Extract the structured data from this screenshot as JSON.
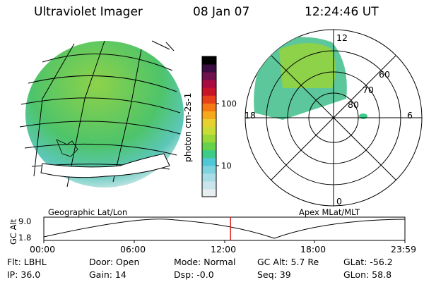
{
  "header": {
    "instrument": "Ultraviolet Imager",
    "date": "08 Jan 07",
    "time": "12:24:46 UT"
  },
  "colorbar": {
    "label": "photon cm-2s-1",
    "ticks": [
      "100",
      "10"
    ],
    "colors": [
      "#e8eef0",
      "#c9e4ea",
      "#a8dde6",
      "#7fd3df",
      "#4fc7d4",
      "#3ccc88",
      "#66d24a",
      "#9ad83a",
      "#c8dc36",
      "#e8d02e",
      "#f4a81c",
      "#f47814",
      "#e8401a",
      "#c81428",
      "#a80c40",
      "#70104c",
      "#3a0c40",
      "#000000"
    ]
  },
  "left_map": {
    "title": "Geographic Lat/Lon",
    "image_colors": {
      "top": "#8ed24a",
      "mid": "#4ec46a",
      "low": "#5cc7b8",
      "edge": "#dfeef2"
    }
  },
  "polar_map": {
    "title": "Apex MLat/MLT",
    "mlt_labels": [
      "12",
      "18",
      "6",
      "0"
    ],
    "mlat_labels": [
      "60",
      "70",
      "80"
    ]
  },
  "timeline": {
    "ylabel": "GC Alt",
    "yticks": [
      "9.0",
      "1.8"
    ],
    "xticks": [
      "00:00",
      "06:00",
      "12:00",
      "18:00",
      "23:59"
    ],
    "marker_time": "12:24",
    "marker_color": "#e02020"
  },
  "status": {
    "flt": "Flt: LBHL",
    "ip": "IP: 36.0",
    "door": "Door: Open",
    "gain": "Gain: 14",
    "mode": "Mode: Normal",
    "dsp": "Dsp: -0.0",
    "gc_alt": "GC Alt: 5.7 Re",
    "seq": "Seq: 39",
    "glat": "GLat: -56.2",
    "glon": "GLon: 58.8"
  }
}
